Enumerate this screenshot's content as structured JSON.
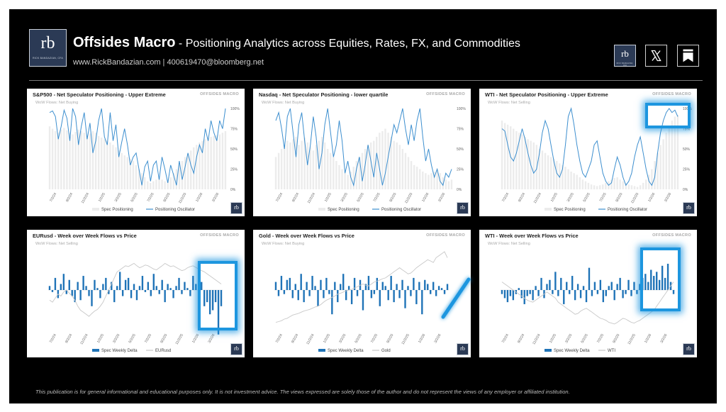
{
  "header": {
    "brand": "Offsides Macro",
    "tagline": " - Positioning Analytics across Equities, Rates, FX, and Commodities",
    "contact": "www.RickBandazian.com  |  400619470@bloomberg.net",
    "logo_text": "rb",
    "logo_subtext": "RICK BANDAZIAN, CFA",
    "icons": [
      "rb-logo-icon",
      "x-logo-icon",
      "bookmark-icon"
    ]
  },
  "panel_brand": "OFFSIDES MACRO",
  "colors": {
    "accent": "#1d96df",
    "bars_light": "#ececec",
    "bars_dark": "#1f73b7",
    "line_blue": "#3d8fcf",
    "line_gray": "#c8c8c8"
  },
  "chart_data": [
    {
      "type": "bar+line",
      "title": "S&P500 - Net Speculator Positioning - Upper Extreme",
      "subtitle": "WoW Flows: Net Buying",
      "x_ticks": [
        "7/2/24",
        "9/2/24",
        "11/2/24",
        "1/2/25",
        "3/2/25",
        "5/2/25",
        "7/2/25",
        "9/2/25",
        "11/2/25",
        "1/2/26",
        "3/2/26"
      ],
      "y_right_ticks": [
        "100%",
        "75%",
        "50%",
        "25%",
        "0%"
      ],
      "ylim": [
        0,
        100
      ],
      "series": [
        {
          "name": "Spec Positioning",
          "kind": "bar",
          "values": [
            78,
            75,
            72,
            70,
            74,
            76,
            73,
            70,
            68,
            71,
            74,
            72,
            70,
            67,
            69,
            72,
            70,
            66,
            64,
            62,
            60,
            58,
            55,
            52,
            48,
            45,
            42,
            40,
            38,
            35,
            30,
            25,
            20,
            15,
            10,
            8,
            10,
            12,
            14,
            12,
            10,
            12,
            15,
            20,
            25,
            30,
            35,
            40,
            44,
            48,
            52,
            55,
            58,
            60,
            62,
            64,
            65,
            66,
            67,
            68,
            70,
            72
          ]
        },
        {
          "name": "Positioning Oscillator",
          "kind": "line",
          "values": [
            95,
            97,
            90,
            62,
            78,
            98,
            88,
            60,
            100,
            90,
            55,
            78,
            95,
            62,
            82,
            45,
            60,
            85,
            100,
            65,
            55,
            95,
            60,
            80,
            40,
            58,
            75,
            55,
            30,
            40,
            45,
            25,
            5,
            28,
            35,
            10,
            30,
            35,
            12,
            40,
            25,
            8,
            30,
            18,
            5,
            35,
            12,
            28,
            45,
            30,
            20,
            40,
            55,
            45,
            75,
            60,
            85,
            70,
            60,
            85,
            75,
            100
          ]
        }
      ]
    },
    {
      "type": "bar+line",
      "title": "Nasdaq - Net Speculator Positioning - lower quartile",
      "subtitle": "WoW Flows: Net Buying",
      "x_ticks": [
        "7/2/24",
        "9/2/24",
        "11/2/24",
        "1/2/25",
        "3/2/25",
        "5/2/25",
        "7/2/25",
        "9/2/25",
        "11/2/25",
        "1/2/26",
        "3/2/26"
      ],
      "y_right_ticks": [
        "100%",
        "75%",
        "50%",
        "25%",
        "0%"
      ],
      "ylim": [
        0,
        100
      ],
      "series": [
        {
          "name": "Spec Positioning",
          "kind": "bar",
          "values": [
            40,
            45,
            50,
            55,
            60,
            58,
            62,
            65,
            55,
            60,
            64,
            58,
            52,
            48,
            55,
            60,
            65,
            58,
            50,
            45,
            40,
            35,
            30,
            25,
            20,
            18,
            22,
            28,
            35,
            40,
            45,
            50,
            55,
            58,
            60,
            65,
            70,
            72,
            75,
            70,
            65,
            60,
            58,
            55,
            50,
            45,
            40,
            35,
            30,
            28,
            25,
            22,
            20,
            18,
            20,
            22,
            25,
            20,
            15,
            12,
            10,
            12
          ]
        },
        {
          "name": "Positioning Oscillator",
          "kind": "line",
          "values": [
            85,
            95,
            75,
            50,
            90,
            100,
            70,
            40,
            80,
            95,
            60,
            30,
            55,
            90,
            65,
            25,
            45,
            80,
            100,
            70,
            40,
            55,
            85,
            60,
            20,
            35,
            15,
            5,
            25,
            40,
            10,
            30,
            55,
            35,
            15,
            45,
            25,
            5,
            20,
            40,
            60,
            80,
            70,
            85,
            100,
            75,
            55,
            80,
            60,
            85,
            100,
            65,
            35,
            50,
            30,
            15,
            25,
            10,
            5,
            20,
            15,
            25
          ]
        }
      ]
    },
    {
      "type": "bar+line",
      "title": "WTI - Net Speculator Positioning - Upper Extreme",
      "subtitle": "WoW Flows: Net Selling",
      "x_ticks": [
        "7/2/24",
        "9/2/24",
        "11/2/24",
        "1/2/25",
        "3/2/25",
        "5/2/25",
        "7/2/25",
        "9/2/25",
        "11/2/25",
        "1/2/26",
        "3/2/26"
      ],
      "y_right_ticks": [
        "100%",
        "75%",
        "50%",
        "25%",
        "0%"
      ],
      "ylim": [
        0,
        100
      ],
      "series": [
        {
          "name": "Spec Positioning",
          "kind": "bar",
          "values": [
            85,
            82,
            80,
            78,
            75,
            72,
            70,
            68,
            65,
            62,
            60,
            58,
            55,
            50,
            48,
            45,
            42,
            40,
            38,
            35,
            32,
            30,
            28,
            25,
            22,
            20,
            18,
            15,
            12,
            10,
            8,
            6,
            5,
            4,
            5,
            6,
            8,
            10,
            12,
            14,
            15,
            12,
            10,
            8,
            6,
            5,
            4,
            3,
            5,
            8,
            12,
            18,
            25,
            35,
            45,
            55,
            62,
            70,
            78,
            85,
            90,
            92
          ]
        },
        {
          "name": "Positioning Oscillator",
          "kind": "line",
          "values": [
            75,
            72,
            55,
            40,
            35,
            45,
            60,
            75,
            62,
            45,
            30,
            20,
            25,
            45,
            70,
            85,
            75,
            55,
            35,
            20,
            15,
            25,
            55,
            90,
            100,
            80,
            55,
            35,
            20,
            15,
            25,
            35,
            55,
            60,
            40,
            20,
            10,
            5,
            8,
            25,
            40,
            30,
            15,
            5,
            10,
            20,
            40,
            55,
            65,
            45,
            25,
            10,
            5,
            15,
            45,
            70,
            85,
            95,
            100,
            95,
            98,
            90
          ]
        }
      ]
    },
    {
      "type": "bar+line",
      "title": "EURusd - Week over Week Flows vs Price",
      "subtitle": "WoW Flows: Net Selling",
      "x_ticks": [
        "7/2/24",
        "9/2/24",
        "11/2/24",
        "1/2/25",
        "3/2/25",
        "5/2/25",
        "7/2/25",
        "9/2/25",
        "11/2/25",
        "1/2/26",
        "3/2/26"
      ],
      "ylim": [
        -100,
        100
      ],
      "series": [
        {
          "name": "Spec Weekly Delta",
          "kind": "bar",
          "values": [
            10,
            -5,
            30,
            -20,
            15,
            40,
            -10,
            25,
            -15,
            -30,
            20,
            -25,
            35,
            10,
            -15,
            -40,
            25,
            5,
            -20,
            15,
            30,
            -10,
            20,
            -30,
            10,
            45,
            -15,
            25,
            30,
            -20,
            15,
            -25,
            10,
            35,
            -5,
            20,
            -15,
            40,
            10,
            -10,
            25,
            -30,
            15,
            5,
            -20,
            10,
            30,
            -10,
            20,
            5,
            -15,
            35,
            15,
            -20,
            20,
            -40,
            -30,
            -60,
            -50,
            -30,
            -110,
            -40
          ]
        },
        {
          "name": "EURusd",
          "kind": "line",
          "values": [
            -25,
            -30,
            -20,
            -10,
            -15,
            -5,
            0,
            -8,
            -15,
            -25,
            -40,
            -50,
            -55,
            -60,
            -65,
            -58,
            -52,
            -48,
            -40,
            -30,
            -15,
            0,
            15,
            30,
            45,
            50,
            55,
            60,
            58,
            62,
            66,
            60,
            55,
            58,
            62,
            60,
            56,
            52,
            50,
            55,
            60,
            66,
            62,
            58,
            60,
            56,
            52,
            48,
            50,
            55,
            58,
            60,
            56,
            52,
            48,
            45,
            40,
            35,
            30,
            25,
            20,
            15
          ]
        }
      ]
    },
    {
      "type": "bar+line",
      "title": "Gold - Week over Week Flows vs Price",
      "subtitle": "WoW Flows: Net Buying",
      "x_ticks": [
        "7/2/24",
        "9/2/24",
        "11/2/24",
        "1/2/25",
        "3/2/25",
        "5/2/25",
        "7/2/25",
        "9/2/25",
        "11/2/25",
        "1/2/26",
        "3/2/26"
      ],
      "ylim": [
        -100,
        100
      ],
      "series": [
        {
          "name": "Spec Weekly Delta",
          "kind": "bar",
          "values": [
            20,
            -15,
            35,
            -10,
            25,
            30,
            -20,
            15,
            -25,
            40,
            -30,
            20,
            -15,
            35,
            10,
            -40,
            25,
            -20,
            30,
            -10,
            -60,
            20,
            -30,
            15,
            40,
            -25,
            10,
            -35,
            30,
            -15,
            25,
            -50,
            15,
            35,
            -20,
            -10,
            30,
            -40,
            20,
            10,
            -25,
            35,
            -30,
            15,
            -20,
            25,
            -45,
            10,
            -15,
            30,
            -35,
            20,
            -60,
            25,
            15,
            -10,
            20,
            -15,
            10,
            5,
            -10,
            15
          ]
        },
        {
          "name": "Gold",
          "kind": "line",
          "values": [
            -80,
            -78,
            -76,
            -72,
            -70,
            -66,
            -62,
            -60,
            -58,
            -55,
            -52,
            -50,
            -48,
            -45,
            -42,
            -40,
            -36,
            -30,
            -25,
            -22,
            -18,
            -15,
            -10,
            -8,
            -5,
            -2,
            0,
            2,
            5,
            8,
            12,
            15,
            12,
            10,
            15,
            20,
            22,
            25,
            28,
            30,
            35,
            40,
            45,
            50,
            55,
            50,
            45,
            40,
            42,
            48,
            55,
            60,
            65,
            70,
            75,
            72,
            68,
            80,
            85,
            90,
            95,
            80
          ]
        }
      ]
    },
    {
      "type": "bar+line",
      "title": "WTI - Week over Week Flows vs Price",
      "subtitle": "WoW Flows: Net Selling",
      "x_ticks": [
        "7/2/24",
        "9/2/24",
        "11/2/24",
        "1/2/25",
        "3/2/25",
        "5/2/25",
        "7/2/25",
        "9/2/25",
        "11/2/25",
        "1/2/26",
        "3/2/26"
      ],
      "ylim": [
        -100,
        100
      ],
      "series": [
        {
          "name": "Spec Weekly Delta",
          "kind": "bar",
          "values": [
            -10,
            -20,
            -30,
            -15,
            -25,
            -10,
            5,
            -20,
            -35,
            -15,
            -10,
            -25,
            10,
            -15,
            30,
            -20,
            15,
            25,
            -10,
            45,
            -15,
            30,
            -35,
            20,
            -10,
            35,
            -25,
            15,
            -20,
            10,
            -30,
            55,
            -15,
            20,
            -10,
            25,
            -30,
            -15,
            10,
            20,
            -25,
            15,
            30,
            -20,
            -10,
            25,
            -15,
            20,
            -10,
            15,
            30,
            40,
            20,
            50,
            35,
            45,
            25,
            60,
            30,
            65,
            20,
            -10
          ]
        },
        {
          "name": "WTI",
          "kind": "line",
          "values": [
            20,
            15,
            10,
            5,
            0,
            -5,
            -10,
            -15,
            -20,
            -25,
            -28,
            -30,
            -25,
            -20,
            -15,
            -10,
            -5,
            -10,
            -15,
            -20,
            -30,
            -35,
            -40,
            -45,
            -50,
            -55,
            -60,
            -58,
            -52,
            -48,
            -45,
            -50,
            -55,
            -60,
            -65,
            -70,
            -72,
            -75,
            -80,
            -82,
            -84,
            -80,
            -75,
            -70,
            -72,
            -76,
            -80,
            -82,
            -78,
            -75,
            -70,
            -65,
            -60,
            -55,
            -50,
            -40,
            -30,
            -20,
            -10,
            0,
            10,
            20
          ]
        }
      ]
    }
  ],
  "disclaimer": "This publication is for general informational and educational purposes only. It is not investment advice. The views expressed are solely those of the author and do not represent the views of any employer or affiliated institution."
}
